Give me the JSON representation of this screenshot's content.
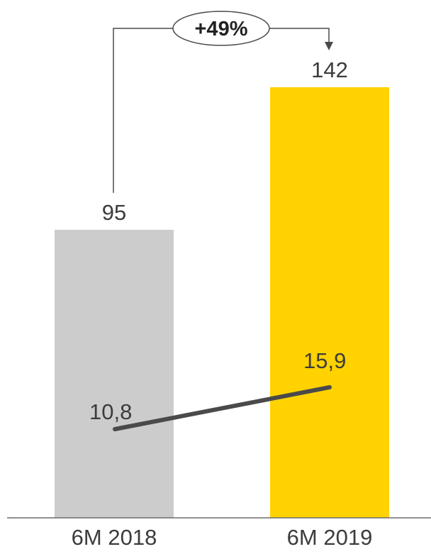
{
  "colors": {
    "bar_2018": "#cccccc",
    "bar_2019": "#ffd200",
    "line": "#4a4a4a",
    "axis": "#6b6b6b",
    "text": "#3c3c3c"
  },
  "chart_data": {
    "type": "bar",
    "categories": [
      "6M 2018",
      "6M 2019"
    ],
    "values": [
      95,
      142
    ],
    "value_labels": [
      "95",
      "142"
    ],
    "line_values": [
      10.8,
      15.9
    ],
    "line_labels": [
      "10,8",
      "15,9"
    ],
    "growth_label": "+49%",
    "title": "",
    "xlabel": "",
    "ylabel": "",
    "ylim": [
      0,
      142
    ],
    "line_ylim": [
      0,
      23
    ],
    "grid": false,
    "legend": "none"
  }
}
